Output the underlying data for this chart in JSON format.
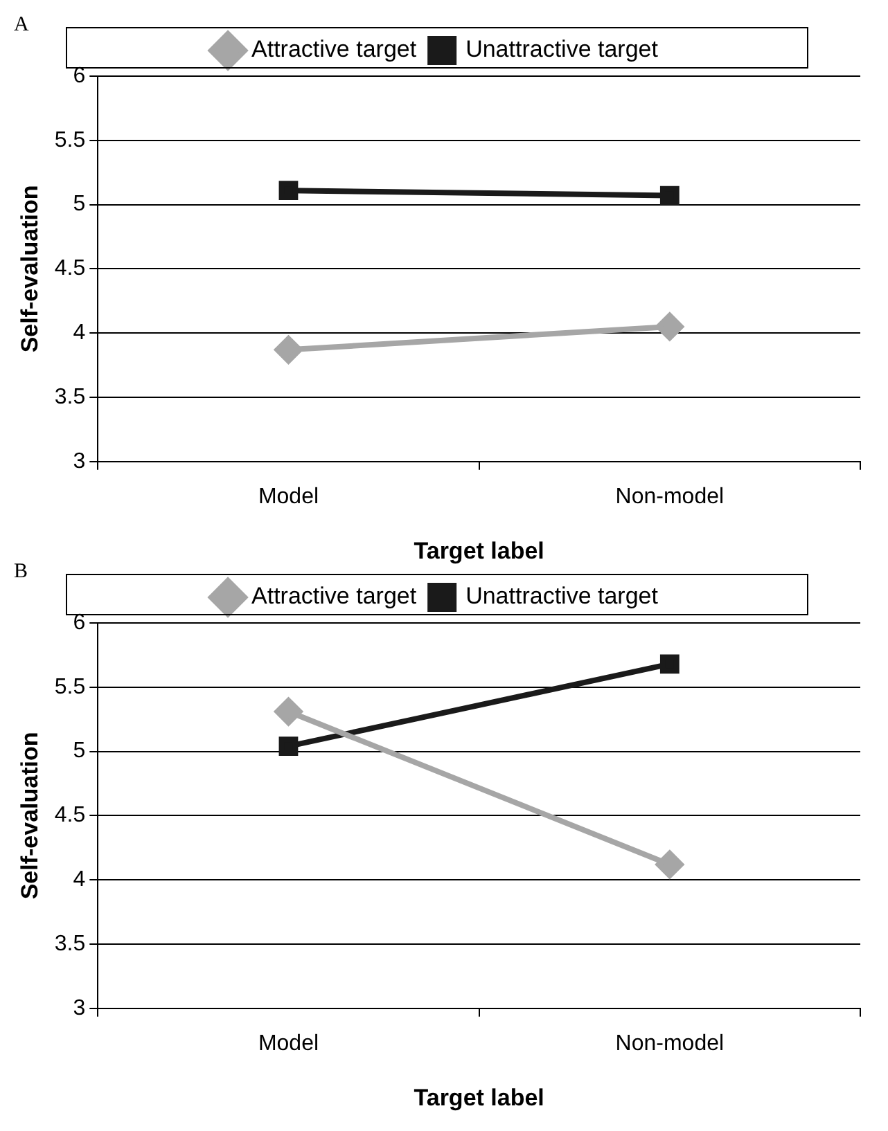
{
  "chart_data": [
    {
      "type": "line",
      "annotations": [
        "A"
      ],
      "xlabel": "Target label",
      "ylabel": "Self-evaluation",
      "categories": [
        "Model",
        "Non-model"
      ],
      "series": [
        {
          "name": "Attractive target",
          "color": "#a6a6a6",
          "marker": "diamond",
          "values": [
            3.87,
            4.05
          ]
        },
        {
          "name": "Unattractive target",
          "color": "#1a1a1a",
          "marker": "square",
          "values": [
            5.11,
            5.07
          ]
        }
      ],
      "ylim": [
        3,
        6
      ],
      "yticks": [
        3,
        3.5,
        4,
        4.5,
        5,
        5.5,
        6
      ],
      "grid": "y",
      "legend": "top",
      "line_style": "solid"
    },
    {
      "type": "line",
      "annotations": [
        "B"
      ],
      "xlabel": "Target label",
      "ylabel": "Self-evaluation",
      "categories": [
        "Model",
        "Non-model"
      ],
      "series": [
        {
          "name": "Attractive target",
          "color": "#a6a6a6",
          "marker": "diamond",
          "values": [
            5.31,
            4.12
          ]
        },
        {
          "name": "Unattractive target",
          "color": "#1a1a1a",
          "marker": "square",
          "values": [
            5.04,
            5.68
          ]
        }
      ],
      "ylim": [
        3,
        6
      ],
      "yticks": [
        3,
        3.5,
        4,
        4.5,
        5,
        5.5,
        6
      ],
      "grid": "y",
      "legend": "top",
      "line_style": "solid"
    }
  ]
}
